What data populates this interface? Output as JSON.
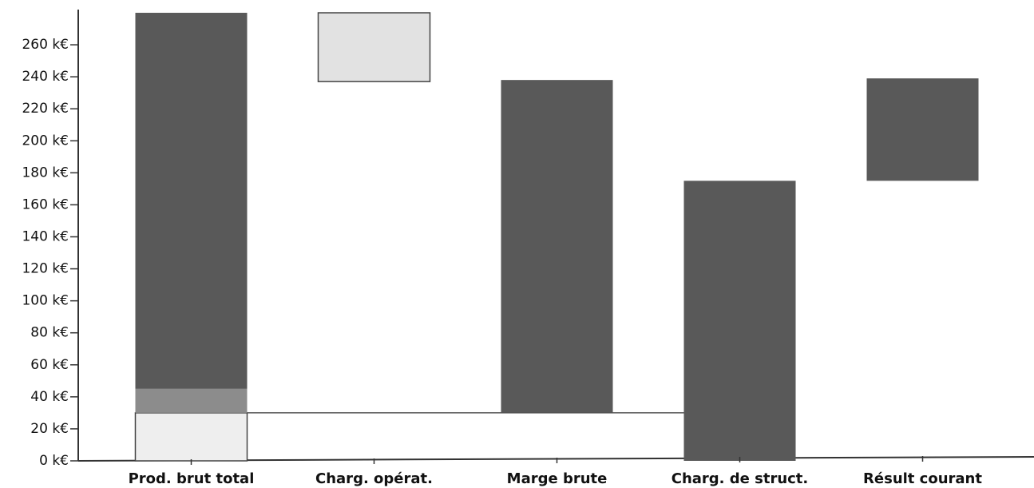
{
  "chart_data": {
    "type": "waterfall",
    "categories": [
      "Prod. brut total",
      "Charg. opérat.",
      "Marge brute",
      "Charg. de struct.",
      "Résult courant"
    ],
    "bars": [
      {
        "segments": [
          {
            "low": 0,
            "high": 30,
            "color": "#eeeeee"
          },
          {
            "low": 30,
            "high": 45,
            "color": "#8c8c8c"
          },
          {
            "low": 45,
            "high": 280,
            "color": "#595959"
          }
        ]
      },
      {
        "segments": [
          {
            "low": 237,
            "high": 280,
            "color": "#e2e2e2"
          }
        ]
      },
      {
        "segments": [
          {
            "low": 30,
            "high": 238,
            "color": "#595959"
          }
        ]
      },
      {
        "segments": [
          {
            "low": 0,
            "high": 175,
            "color": "#595959"
          }
        ]
      },
      {
        "segments": [
          {
            "low": 175,
            "high": 239,
            "color": "#595959"
          }
        ]
      }
    ],
    "ylim": [
      0,
      282
    ],
    "yticks": [
      {
        "value": 0,
        "label": "0 k€"
      },
      {
        "value": 20,
        "label": "20 k€"
      },
      {
        "value": 40,
        "label": "40 k€"
      },
      {
        "value": 60,
        "label": "60 k€"
      },
      {
        "value": 80,
        "label": "80 k€"
      },
      {
        "value": 100,
        "label": "100 k€"
      },
      {
        "value": 120,
        "label": "120 k€"
      },
      {
        "value": 140,
        "label": "140 k€"
      },
      {
        "value": 160,
        "label": "160 k€"
      },
      {
        "value": 180,
        "label": "180 k€"
      },
      {
        "value": 200,
        "label": "200 k€"
      },
      {
        "value": 220,
        "label": "220 k€"
      },
      {
        "value": 240,
        "label": "240 k€"
      },
      {
        "value": 260,
        "label": "260 k€"
      }
    ]
  }
}
